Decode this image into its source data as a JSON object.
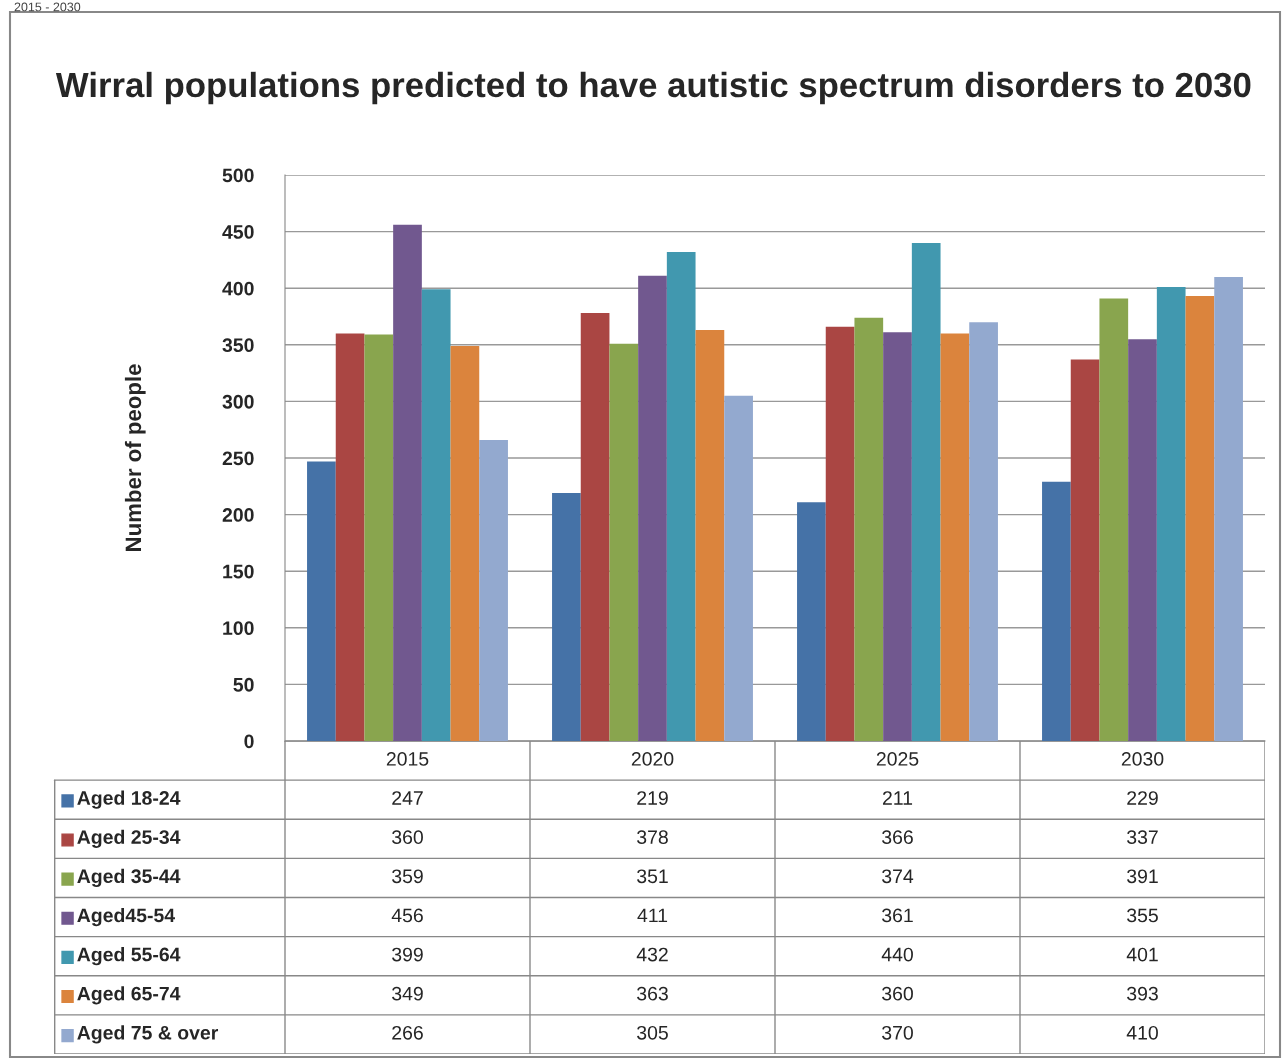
{
  "chart_data": {
    "type": "bar",
    "title": "Wirral populations predicted to have autistic spectrum disorders to 2030",
    "ylabel": "Number of people",
    "annotations": [
      "2015 - 2030"
    ],
    "categories": [
      "2015",
      "2020",
      "2025",
      "2030"
    ],
    "series": [
      {
        "name": "Aged 18-24",
        "color": "#4572a7",
        "values": [
          247,
          219,
          211,
          229
        ]
      },
      {
        "name": "Aged 25-34",
        "color": "#aa4643",
        "values": [
          360,
          378,
          366,
          337
        ]
      },
      {
        "name": "Aged 35-44",
        "color": "#89a54e",
        "values": [
          359,
          351,
          374,
          391
        ]
      },
      {
        "name": "Aged45-54",
        "color": "#71588f",
        "values": [
          456,
          411,
          361,
          355
        ]
      },
      {
        "name": "Aged 55-64",
        "color": "#4198af",
        "values": [
          399,
          432,
          440,
          401
        ]
      },
      {
        "name": "Aged 65-74",
        "color": "#db843d",
        "values": [
          349,
          363,
          360,
          393
        ]
      },
      {
        "name": "Aged 75 & over",
        "color": "#93a9cf",
        "values": [
          266,
          305,
          370,
          410
        ]
      }
    ],
    "ylim": [
      0,
      500
    ],
    "yticks": [
      0,
      50,
      100,
      150,
      200,
      250,
      300,
      350,
      400,
      450,
      500
    ],
    "grid": "y",
    "legend": "bottom",
    "data_labels": true
  }
}
